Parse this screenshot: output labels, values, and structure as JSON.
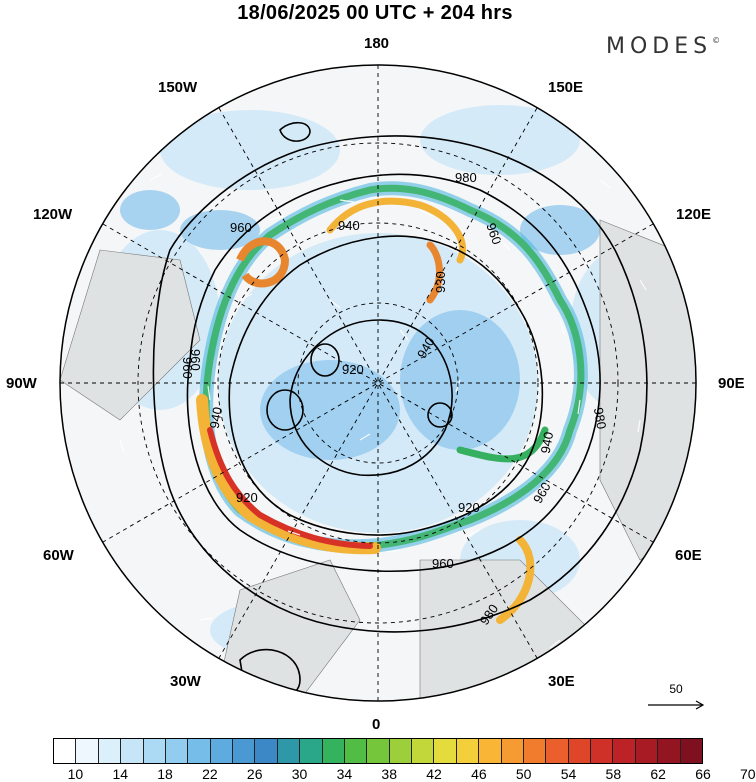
{
  "header": {
    "title": "18/06/2025  00 UTC  + 204 hrs"
  },
  "brand": {
    "logo_text": "MODES",
    "logo_mark": "©"
  },
  "lon_labels": {
    "n180": "180",
    "w150": "150W",
    "e150": "150E",
    "w120": "120W",
    "e120": "120E",
    "w90": "90W",
    "e90": "90E",
    "w60": "60W",
    "e60": "60E",
    "w30": "30W",
    "e30": "30E",
    "s0": "0"
  },
  "contour_labels": [
    "960",
    "940",
    "980",
    "960",
    "930",
    "940",
    "960",
    "960",
    "940",
    "920",
    "980",
    "940",
    "960",
    "920",
    "920",
    "960",
    "980"
  ],
  "reference_vector": {
    "label": "50"
  },
  "colorbar": {
    "labels": [
      "10",
      "14",
      "18",
      "22",
      "26",
      "30",
      "34",
      "38",
      "42",
      "46",
      "50",
      "54",
      "58",
      "62",
      "66",
      "70"
    ],
    "colors": [
      "#ffffff",
      "#eef7fd",
      "#dcf0fb",
      "#c6e6f8",
      "#acdaf4",
      "#92cdf0",
      "#76bde9",
      "#5eacdf",
      "#4a99d3",
      "#3c88c6",
      "#2f98a8",
      "#2aa688",
      "#34b25e",
      "#52bd45",
      "#76c63c",
      "#9ccf3a",
      "#c2d83a",
      "#e3dc3c",
      "#f4cf3c",
      "#f8b536",
      "#f69a32",
      "#f27c2e",
      "#ea5f2b",
      "#de4529",
      "#cf3028",
      "#bd2326",
      "#a81b24",
      "#931522",
      "#7f1020"
    ]
  }
}
